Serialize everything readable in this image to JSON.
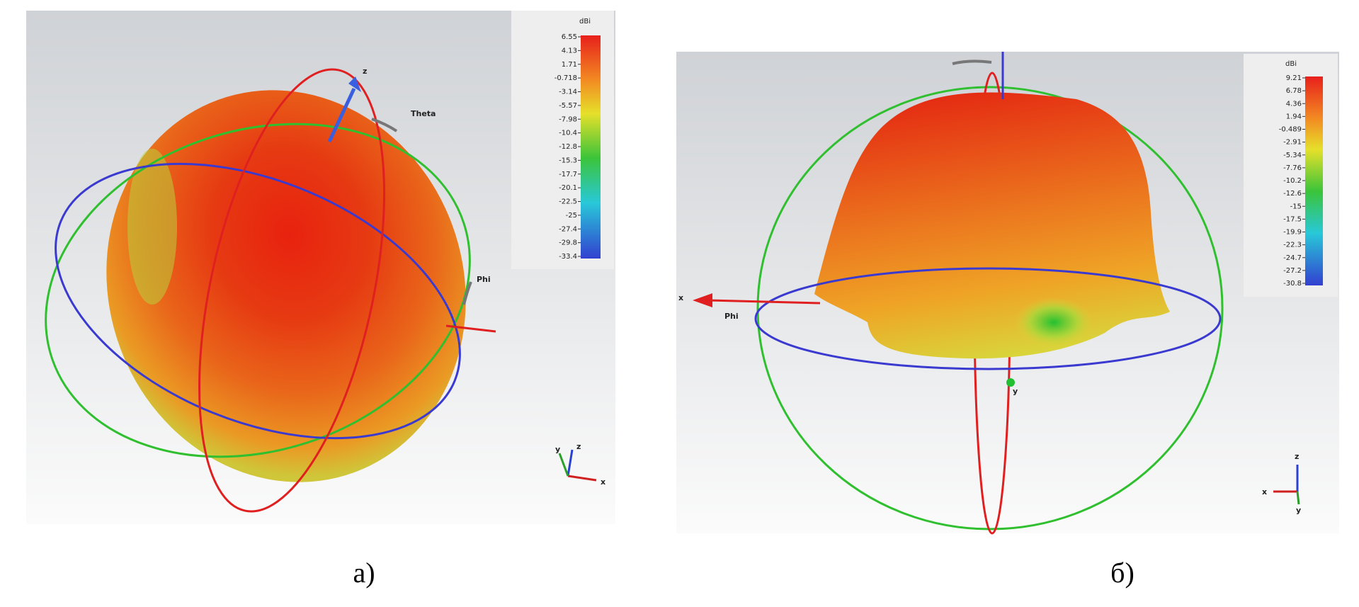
{
  "panels": [
    {
      "caption": "а)",
      "colorbar": {
        "unit": "dBi",
        "labels": [
          "6.55",
          "4.13",
          "1.71",
          "-0.718",
          "-3.14",
          "-5.57",
          "-7.98",
          "-10.4",
          "-12.8",
          "-15.3",
          "-17.7",
          "-20.1",
          "-22.5",
          "-25",
          "-27.4",
          "-29.8",
          "-33.4"
        ]
      },
      "axis_labels": [
        "z",
        "Theta",
        "Phi"
      ],
      "triad": [
        "y",
        "z",
        "x"
      ]
    },
    {
      "caption": "б)",
      "colorbar": {
        "unit": "dBi",
        "labels": [
          "9.21",
          "6.78",
          "4.36",
          "1.94",
          "-0.489",
          "-2.91",
          "-5.34",
          "-7.76",
          "-10.2",
          "-12.6",
          "-15",
          "-17.5",
          "-19.9",
          "-22.3",
          "-24.7",
          "-27.2",
          "-30.8"
        ]
      },
      "axis_labels": [
        "x",
        "Phi",
        "y"
      ],
      "triad": [
        "z",
        "x",
        "y"
      ]
    }
  ]
}
